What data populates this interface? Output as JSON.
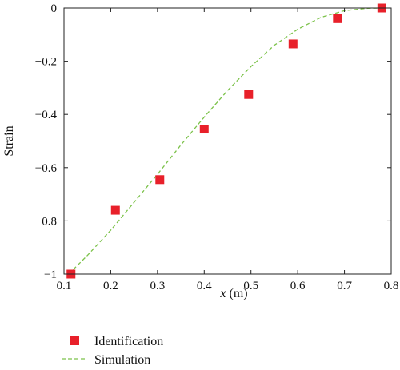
{
  "chart_data": {
    "type": "scatter",
    "xlabel_var": "x",
    "xlabel_unit": " (m)",
    "ylabel": "Strain",
    "xlim": [
      0.1,
      0.8
    ],
    "ylim": [
      -1,
      0
    ],
    "x_ticks": [
      0.1,
      0.2,
      0.3,
      0.4,
      0.5,
      0.6,
      0.7,
      0.8
    ],
    "x_tick_labels": [
      "0.1",
      "0.2",
      "0.3",
      "0.4",
      "0.5",
      "0.6",
      "0.7",
      "0.8"
    ],
    "y_ticks": [
      -1,
      -0.8,
      -0.6,
      -0.4,
      -0.2,
      0
    ],
    "y_tick_labels": [
      "−1",
      "−0.8",
      "−0.6",
      "−0.4",
      "−0.2",
      "0"
    ],
    "grid": false,
    "legend_position": "bottom-left",
    "series": [
      {
        "name": "Identification",
        "kind": "scatter",
        "marker": "square",
        "color": "#e8202a",
        "x": [
          0.115,
          0.21,
          0.305,
          0.4,
          0.495,
          0.59,
          0.685,
          0.78
        ],
        "y": [
          -1.0,
          -0.76,
          -0.645,
          -0.455,
          -0.325,
          -0.135,
          -0.04,
          0.0
        ]
      },
      {
        "name": "Simulation",
        "kind": "line",
        "style": "dashed",
        "color": "#7cc24a",
        "x": [
          0.11,
          0.15,
          0.2,
          0.25,
          0.3,
          0.35,
          0.4,
          0.45,
          0.5,
          0.55,
          0.6,
          0.65,
          0.7,
          0.75,
          0.78
        ],
        "y": [
          -1.0,
          -0.93,
          -0.835,
          -0.73,
          -0.625,
          -0.515,
          -0.41,
          -0.31,
          -0.22,
          -0.14,
          -0.08,
          -0.035,
          -0.01,
          -0.001,
          0.0
        ]
      }
    ]
  }
}
